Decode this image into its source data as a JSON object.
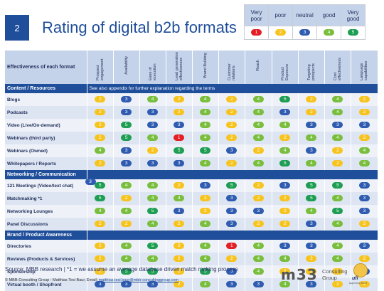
{
  "slide_number": "2",
  "title": "Rating of digital b2b formats",
  "legend": {
    "labels": [
      "Very poor",
      "poor",
      "neutral",
      "good",
      "Very good"
    ],
    "values": [
      "1",
      "2",
      "3",
      "4",
      "5"
    ]
  },
  "colors": {
    "1": "#e31e24",
    "2": "#f7c41f",
    "3": "#2f5cb0",
    "4": "#79be3c",
    "5": "#1d9e52"
  },
  "table": {
    "header_label": "Effectiveness of each format",
    "columns": [
      "Prospect engagement",
      "Availability",
      "Ease of execution",
      "Lead generation effectiveness",
      "Brand Building",
      "Customer relations",
      "Reach",
      "Product Exposure",
      "Targeting prospects",
      "Cost effectiveness",
      "Language capabilities"
    ],
    "sections": [
      {
        "name": "Content / Resources",
        "note": "See also appendix for further explanation regarding the terms",
        "rows": [
          {
            "label": "Blogs",
            "values": [
              "2",
              "3",
              "4",
              "2",
              "4",
              "2",
              "4",
              "5",
              "2",
              "4",
              "2"
            ]
          },
          {
            "label": "Podcasts",
            "values": [
              "2",
              "3",
              "3",
              "2",
              "4",
              "2",
              "4",
              "3",
              "2",
              "4",
              "2"
            ]
          },
          {
            "label": "Video (Live/On-demand)",
            "values": [
              "2",
              "5",
              "3",
              "3",
              "4",
              "2",
              "4",
              "4",
              "3",
              "3",
              "3"
            ]
          },
          {
            "label": "Webinars (third party)",
            "values": [
              "2",
              "5",
              "4",
              "1",
              "4",
              "2",
              "4",
              "2",
              "4",
              "4",
              "2"
            ]
          },
          {
            "label": "Webinars (Owned)",
            "values": [
              "4",
              "3",
              "2",
              "5",
              "5",
              "3",
              "2",
              "4",
              "3",
              "2",
              "4"
            ]
          },
          {
            "label": "Whitepapers / Reports",
            "values": [
              "2",
              "3",
              "3",
              "3",
              "4",
              "2",
              "4",
              "5",
              "4",
              "2",
              "4"
            ]
          }
        ]
      },
      {
        "name": "Networking / Communication",
        "note": "",
        "rows": [
          {
            "label": "121 Meetings (Video/text chat)",
            "values": [
              "5",
              "4",
              "4",
              "2",
              "3",
              "5",
              "2",
              "3",
              "5",
              "5",
              "3"
            ],
            "extra": "3"
          },
          {
            "label": "Matchmaking *1",
            "values": [
              "5",
              "2",
              "4",
              "4",
              "2",
              "3",
              "2",
              "2",
              "5",
              "4",
              "3"
            ]
          },
          {
            "label": "Networking Lounges",
            "values": [
              "4",
              "4",
              "5",
              "3",
              "2",
              "3",
              "3",
              "2",
              "4",
              "5",
              "3"
            ]
          },
          {
            "label": "Panel Discussions",
            "values": [
              "2",
              "2",
              "4",
              "2",
              "4",
              "3",
              "2",
              "2",
              "3",
              "4",
              "2"
            ]
          }
        ]
      },
      {
        "name": "Brand / Product Awareness",
        "note": "",
        "rows": [
          {
            "label": "Directories",
            "values": [
              "2",
              "4",
              "5",
              "2",
              "4",
              "1",
              "4",
              "3",
              "3",
              "4",
              "3"
            ]
          },
          {
            "label": "Reviews (Products & Services)",
            "values": [
              "2",
              "4",
              "4",
              "2",
              "4",
              "2",
              "4",
              "4",
              "2",
              "4",
              "2"
            ]
          },
          {
            "label": "Sponsorship",
            "values": [
              "2",
              "5",
              "5",
              "2",
              "5",
              "3",
              "4",
              "2",
              "2",
              "2",
              "3"
            ]
          },
          {
            "label": "Virtual booth / Shopfront",
            "values": [
              "3",
              "3",
              "3",
              "2",
              "4",
              "3",
              "3",
              "4",
              "3",
              "2",
              "2"
            ]
          }
        ]
      }
    ]
  },
  "source": "Source: MBB research | *1 = we assume an average database driven match making process",
  "footer_text": "© MBB-Consulting Group - Matthias Tesi Baur, Email: ",
  "footer_email": "matthias.tesi.baur@mbb-consultinggroup.com",
  "logo": {
    "mark": "m33",
    "line1": "Consulting",
    "line2": "Group"
  },
  "badge": {
    "name": "ufi",
    "sub": "Approved Event"
  }
}
